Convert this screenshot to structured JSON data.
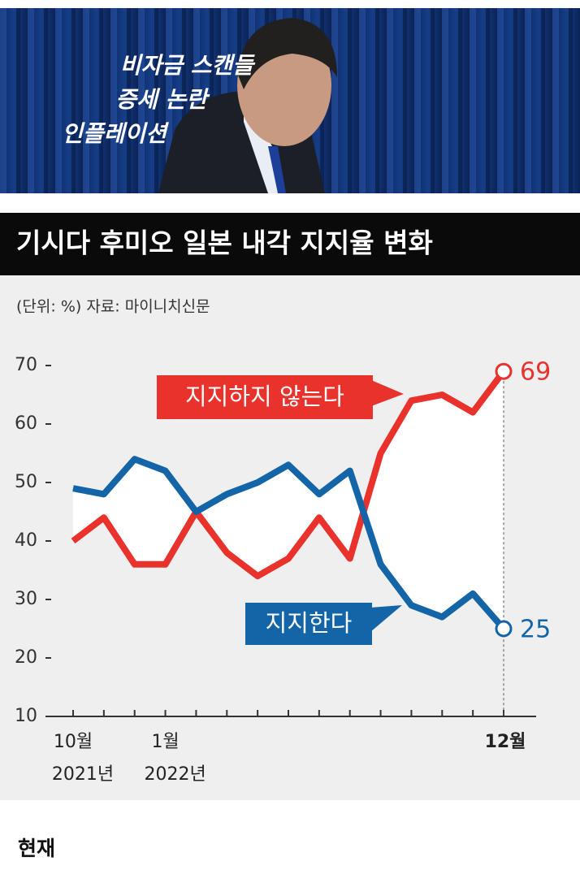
{
  "photo": {
    "captions": [
      "비자금 스캔들",
      "증세 논란",
      "인플레이션"
    ]
  },
  "chart_data": {
    "type": "line",
    "title": "기시다 후미오 일본 내각 지지율 변화",
    "subtitle": "(단위: %) 자료: 마이니치신문",
    "categories": [
      "10월",
      null,
      null,
      "1월",
      null,
      null,
      null,
      null,
      null,
      null,
      null,
      null,
      null,
      null,
      "12월"
    ],
    "category_years": [
      "2021년",
      null,
      null,
      "2022년",
      null,
      null,
      null,
      null,
      null,
      null,
      null,
      null,
      null,
      null,
      null
    ],
    "series": [
      {
        "name": "지지하지 않는다",
        "color": "#e8322b",
        "values": [
          40,
          44,
          36,
          36,
          45,
          38,
          34,
          37,
          44,
          37,
          55,
          64,
          65,
          62,
          69
        ]
      },
      {
        "name": "지지한다",
        "color": "#1465a8",
        "values": [
          49,
          48,
          54,
          52,
          45,
          48,
          50,
          53,
          48,
          52,
          36,
          29,
          27,
          31,
          25
        ]
      }
    ],
    "ylim": [
      10,
      70
    ],
    "yticks": [
      10,
      20,
      30,
      40,
      50,
      60,
      70
    ]
  },
  "footer": {
    "caption": "현재"
  }
}
